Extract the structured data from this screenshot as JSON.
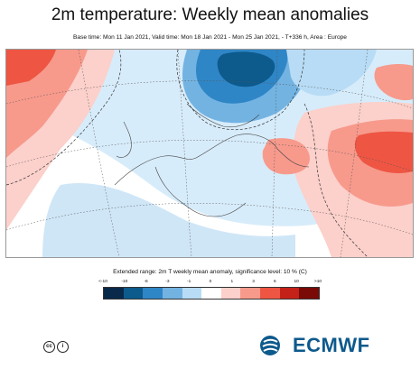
{
  "title": "2m temperature: Weekly mean anomalies",
  "subtitle": "Base time: Mon 11 Jan 2021, Valid time: Mon 18 Jan 2021 - Mon 25 Jan 2021, - T+336 h, Area : Europe",
  "legend": {
    "title": "Extended range: 2m T weekly mean anomaly, significance level: 10 % (C)",
    "ticks": [
      "<-10",
      "-10",
      "-6",
      "-3",
      "-1",
      "0",
      "1",
      "3",
      "6",
      "10",
      ">10"
    ],
    "colors": [
      "#08294a",
      "#0d5a8c",
      "#2f86c6",
      "#73b3e2",
      "#b8dcf5",
      "#ffffff",
      "#fcd0cb",
      "#f79a8c",
      "#ee5543",
      "#c42218",
      "#7a0a06"
    ]
  },
  "footer": {
    "license_badges": [
      "cc",
      "i"
    ],
    "logo_text": "ECMWF"
  }
}
